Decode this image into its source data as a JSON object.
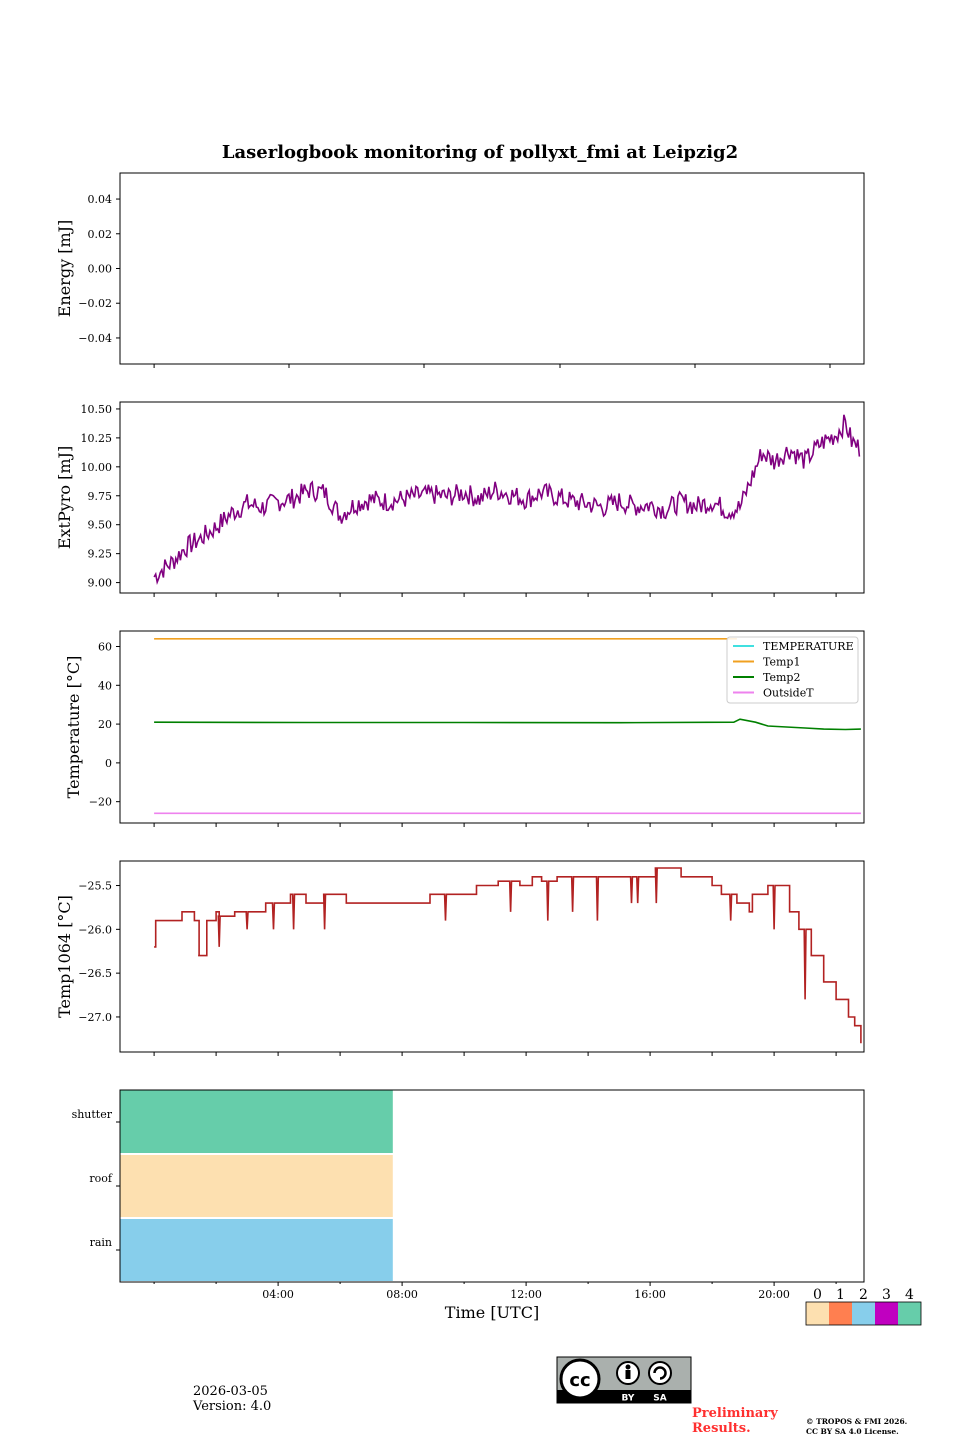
{
  "title": "Laserlogbook monitoring of pollyxt_fmi at Leipzig2",
  "chart_data": [
    {
      "type": "line",
      "panel": "energy",
      "ylabel": "Energy [mJ]",
      "ylim": [
        -0.055,
        0.055
      ],
      "yticks": [
        0.04,
        0.02,
        0.0,
        -0.02,
        -0.04
      ],
      "ytick_labels": [
        "0.04",
        "0.02",
        "0.00",
        "−0.02",
        "−0.04"
      ],
      "xlim_hours": [
        -1.1,
        22.9
      ],
      "series": []
    },
    {
      "type": "line",
      "panel": "extpyro",
      "ylabel": "ExtPyro [mJ]",
      "ylim": [
        8.91,
        10.56
      ],
      "yticks": [
        10.5,
        10.25,
        10.0,
        9.75,
        9.5,
        9.25,
        9.0
      ],
      "ytick_labels": [
        "10.50",
        "10.25",
        "10.00",
        "9.75",
        "9.50",
        "9.25",
        "9.00"
      ],
      "xlim_hours": [
        -1.1,
        22.9
      ],
      "series": [
        {
          "name": "ExtPyro",
          "color": "#800080",
          "x": [
            0.0,
            0.3,
            0.6,
            1.0,
            1.5,
            2.0,
            2.5,
            3.0,
            3.5,
            4.0,
            4.5,
            5.0,
            5.5,
            6.0,
            6.5,
            7.0,
            7.5,
            8.0,
            8.5,
            9.0,
            9.5,
            10.0,
            10.5,
            11.0,
            11.5,
            12.0,
            12.5,
            13.0,
            13.5,
            14.0,
            14.5,
            15.0,
            15.5,
            16.0,
            16.5,
            17.0,
            17.5,
            18.0,
            18.5,
            18.9,
            19.2,
            19.6,
            20.0,
            20.5,
            21.0,
            21.5,
            22.0,
            22.3,
            22.5,
            22.8
          ],
          "values": [
            9.05,
            9.12,
            9.18,
            9.3,
            9.38,
            9.48,
            9.6,
            9.68,
            9.65,
            9.7,
            9.73,
            9.8,
            9.78,
            9.58,
            9.68,
            9.72,
            9.7,
            9.72,
            9.75,
            9.76,
            9.74,
            9.78,
            9.72,
            9.8,
            9.76,
            9.72,
            9.78,
            9.74,
            9.7,
            9.68,
            9.65,
            9.7,
            9.66,
            9.67,
            9.63,
            9.7,
            9.66,
            9.7,
            9.62,
            9.65,
            9.85,
            10.12,
            10.05,
            10.15,
            10.05,
            10.2,
            10.28,
            10.38,
            10.22,
            10.15
          ],
          "noise": 0.09
        }
      ]
    },
    {
      "type": "line",
      "panel": "temperature",
      "ylabel": "Temperature [°C]",
      "ylim": [
        -31,
        68
      ],
      "yticks": [
        60,
        40,
        20,
        0,
        -20
      ],
      "ytick_labels": [
        "60",
        "40",
        "20",
        "0",
        "−20"
      ],
      "xlim_hours": [
        -1.1,
        22.9
      ],
      "legend": "top-right",
      "series": [
        {
          "name": "TEMPERATURE",
          "color": "#40e0e0",
          "x": [],
          "values": []
        },
        {
          "name": "Temp1",
          "color": "#f0a020",
          "x": [
            0.0,
            18.8
          ],
          "values": [
            64,
            64
          ]
        },
        {
          "name": "Temp2",
          "color": "#008000",
          "x": [
            0.0,
            5.0,
            10.0,
            15.0,
            18.7,
            18.9,
            19.4,
            19.8,
            20.4,
            21.0,
            21.6,
            22.3,
            22.8
          ],
          "values": [
            21,
            20.8,
            20.8,
            20.7,
            21.0,
            22.5,
            21.0,
            19.0,
            18.5,
            18.0,
            17.4,
            17.2,
            17.4
          ]
        },
        {
          "name": "OutsideT",
          "color": "#ee82ee",
          "x": [
            0.0,
            22.8
          ],
          "values": [
            -26,
            -26
          ]
        }
      ]
    },
    {
      "type": "line",
      "panel": "temp1064",
      "ylabel": "Temp1064 [°C]",
      "ylim": [
        -27.4,
        -25.22
      ],
      "yticks": [
        -25.5,
        -26.0,
        -26.5,
        -27.0
      ],
      "ytick_labels": [
        "−25.5",
        "−26.0",
        "−26.5",
        "−27.0"
      ],
      "xlim_hours": [
        -1.1,
        22.9
      ],
      "series": [
        {
          "name": "Temp1064",
          "color": "#b22222",
          "x": [
            0.0,
            0.05,
            0.8,
            0.9,
            1.3,
            1.45,
            1.7,
            2.0,
            2.1,
            2.6,
            3.1,
            3.6,
            3.65,
            4.2,
            4.4,
            4.9,
            5.5,
            6.2,
            7.5,
            8.9,
            9.2,
            10.0,
            10.4,
            11.0,
            11.1,
            11.8,
            12.2,
            12.5,
            13.0,
            14.0,
            15.2,
            16.0,
            16.2,
            17.0,
            17.5,
            18.0,
            18.3,
            18.8,
            19.0,
            19.2,
            19.3,
            19.8,
            20.1,
            20.5,
            20.8,
            21.2,
            21.6,
            22.0,
            22.4,
            22.6,
            22.8
          ],
          "values": [
            -26.2,
            -25.9,
            -25.9,
            -25.8,
            -25.9,
            -26.3,
            -25.9,
            -25.8,
            -25.85,
            -25.8,
            -25.8,
            -25.7,
            -25.7,
            -25.7,
            -25.6,
            -25.7,
            -25.6,
            -25.7,
            -25.7,
            -25.6,
            -25.6,
            -25.6,
            -25.5,
            -25.5,
            -25.45,
            -25.5,
            -25.4,
            -25.45,
            -25.4,
            -25.4,
            -25.4,
            -25.4,
            -25.3,
            -25.4,
            -25.4,
            -25.5,
            -25.6,
            -25.7,
            -25.7,
            -25.8,
            -25.6,
            -25.5,
            -25.5,
            -25.8,
            -26.0,
            -26.3,
            -26.6,
            -26.8,
            -27.0,
            -27.1,
            -27.3
          ],
          "spikes": [
            [
              1.45,
              -26.3
            ],
            [
              2.1,
              -26.2
            ],
            [
              3.0,
              -26.0
            ],
            [
              3.85,
              -26.0
            ],
            [
              4.5,
              -26.0
            ],
            [
              5.5,
              -26.0
            ],
            [
              7.0,
              -25.7
            ],
            [
              9.4,
              -25.9
            ],
            [
              11.5,
              -25.8
            ],
            [
              12.7,
              -25.9
            ],
            [
              13.5,
              -25.8
            ],
            [
              14.3,
              -25.9
            ],
            [
              15.4,
              -25.7
            ],
            [
              15.6,
              -25.7
            ],
            [
              16.2,
              -25.7
            ],
            [
              18.6,
              -25.9
            ],
            [
              20.0,
              -26.0
            ],
            [
              21.0,
              -26.8
            ]
          ]
        }
      ]
    },
    {
      "type": "heatmap",
      "panel": "flags",
      "xlabel": "Time [UTC]",
      "rows": [
        "shutter",
        "roof",
        "rain"
      ],
      "xticks_hours": [
        4,
        8,
        12,
        16,
        20
      ],
      "xtick_labels": [
        "04:00",
        "08:00",
        "12:00",
        "16:00",
        "20:00"
      ],
      "xlim_hours": [
        -1.1,
        22.9
      ],
      "cells": [
        {
          "row": "shutter",
          "x_start": -1.1,
          "x_end": 7.7,
          "state": 4
        },
        {
          "row": "roof",
          "x_start": -1.1,
          "x_end": 7.7,
          "state": 0
        },
        {
          "row": "rain",
          "x_start": -1.1,
          "x_end": 7.7,
          "state": 2
        }
      ],
      "colorbar": {
        "labels": [
          "0",
          "1",
          "2",
          "3",
          "4"
        ],
        "colors": [
          "#fde0b0",
          "#ff7f50",
          "#87ceeb",
          "#c000c0",
          "#66cdaa"
        ]
      }
    }
  ],
  "footer": {
    "date": "2026-03-05",
    "version": "Version: 4.0",
    "preliminary": "Preliminary Results.",
    "copyright_line1": "© TROPOS & FMI 2026.",
    "copyright_line2": "CC BY SA 4.0 License.",
    "license_badge": {
      "cc": "cc",
      "by": "BY",
      "sa": "SA"
    }
  }
}
